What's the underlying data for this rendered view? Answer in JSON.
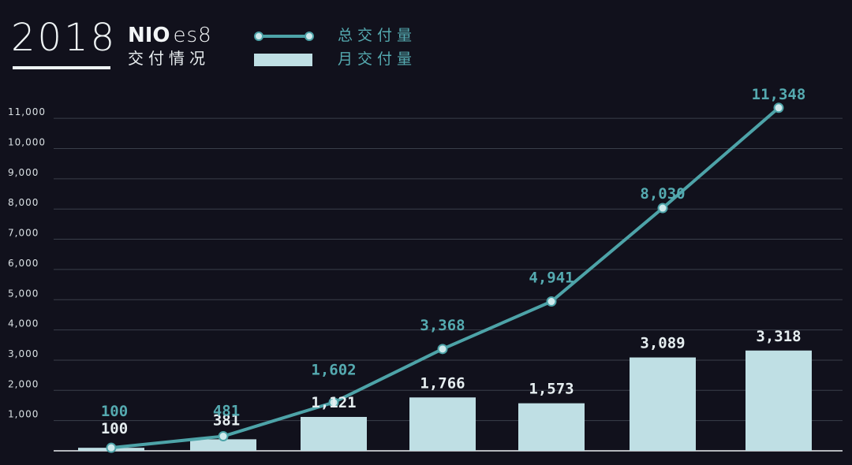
{
  "header": {
    "year": "2018",
    "brand_logo": "NIO",
    "brand_model": "es8",
    "subtitle": "交付情况"
  },
  "legend": {
    "total_label": "总交付量",
    "monthly_label": "月交付量"
  },
  "colors": {
    "background": "#11111c",
    "line": "#4da3a8",
    "bar": "#bfdfe4",
    "total_label": "#55aab0",
    "monthly_label": "#e6eef0",
    "grid": "#3a3f4a"
  },
  "chart_data": {
    "type": "bar",
    "title": "",
    "xlabel": "",
    "ylabel": "",
    "ylim": [
      0,
      11000
    ],
    "y_ticks": [
      "1,000",
      "2,000",
      "3,000",
      "4,000",
      "5,000",
      "6,000",
      "7,000",
      "8,000",
      "9,000",
      "10,000",
      "11,000"
    ],
    "y_tick_values": [
      1000,
      2000,
      3000,
      4000,
      5000,
      6000,
      7000,
      8000,
      9000,
      10000,
      11000
    ],
    "grid": true,
    "legend_position": "top",
    "series": [
      {
        "name": "月交付量",
        "type": "bar",
        "values": [
          100,
          381,
          1121,
          1766,
          1573,
          3089,
          3318
        ],
        "labels": [
          "100",
          "381",
          "1,121",
          "1,766",
          "1,573",
          "3,089",
          "3,318"
        ]
      },
      {
        "name": "总交付量",
        "type": "line",
        "values": [
          100,
          481,
          1602,
          3368,
          4941,
          8030,
          11348
        ],
        "labels": [
          "100",
          "481",
          "1,602",
          "3,368",
          "4,941",
          "8,030",
          "11,348"
        ]
      }
    ]
  }
}
